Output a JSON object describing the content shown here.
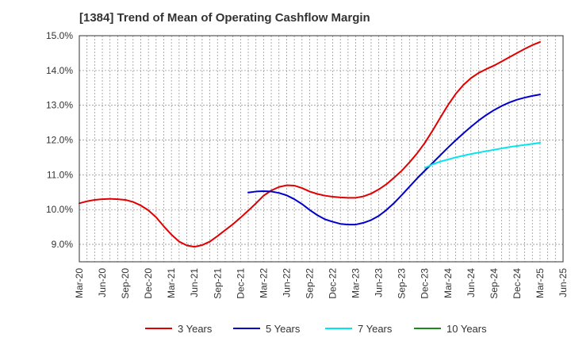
{
  "chart_data": {
    "type": "line",
    "title": "[1384]  Trend of Mean of Operating Cashflow Margin",
    "ylim": [
      8.5,
      15.0
    ],
    "yticks": [
      9.0,
      10.0,
      11.0,
      12.0,
      13.0,
      14.0,
      15.0
    ],
    "ytick_labels": [
      "9.0%",
      "10.0%",
      "11.0%",
      "12.0%",
      "13.0%",
      "14.0%",
      "15.0%"
    ],
    "xtick_labels": [
      "Mar-20",
      "Jun-20",
      "Sep-20",
      "Dec-20",
      "Mar-21",
      "Jun-21",
      "Sep-21",
      "Dec-21",
      "Mar-22",
      "Jun-22",
      "Sep-22",
      "Dec-22",
      "Mar-23",
      "Jun-23",
      "Sep-23",
      "Dec-23",
      "Mar-24",
      "Jun-24",
      "Sep-24",
      "Dec-24",
      "Mar-25",
      "Jun-25"
    ],
    "grid": true,
    "legend_position": "bottom",
    "series": [
      {
        "name": "3 Years",
        "color": "#e00000",
        "points": [
          [
            "Mar-20",
            10.18
          ],
          [
            "Apr-20",
            10.24
          ],
          [
            "May-20",
            10.28
          ],
          [
            "Jun-20",
            10.3
          ],
          [
            "Jul-20",
            10.31
          ],
          [
            "Aug-20",
            10.3
          ],
          [
            "Sep-20",
            10.28
          ],
          [
            "Oct-20",
            10.22
          ],
          [
            "Nov-20",
            10.12
          ],
          [
            "Dec-20",
            9.98
          ],
          [
            "Jan-21",
            9.78
          ],
          [
            "Feb-21",
            9.52
          ],
          [
            "Mar-21",
            9.28
          ],
          [
            "Apr-21",
            9.08
          ],
          [
            "May-21",
            8.97
          ],
          [
            "Jun-21",
            8.93
          ],
          [
            "Jul-21",
            8.98
          ],
          [
            "Aug-21",
            9.08
          ],
          [
            "Sep-21",
            9.24
          ],
          [
            "Oct-21",
            9.41
          ],
          [
            "Nov-21",
            9.58
          ],
          [
            "Dec-21",
            9.77
          ],
          [
            "Jan-22",
            9.97
          ],
          [
            "Feb-22",
            10.18
          ],
          [
            "Mar-22",
            10.4
          ],
          [
            "Apr-22",
            10.55
          ],
          [
            "May-22",
            10.65
          ],
          [
            "Jun-22",
            10.7
          ],
          [
            "Jul-22",
            10.69
          ],
          [
            "Aug-22",
            10.62
          ],
          [
            "Sep-22",
            10.52
          ],
          [
            "Oct-22",
            10.45
          ],
          [
            "Nov-22",
            10.4
          ],
          [
            "Dec-22",
            10.37
          ],
          [
            "Jan-23",
            10.35
          ],
          [
            "Feb-23",
            10.34
          ],
          [
            "Mar-23",
            10.34
          ],
          [
            "Apr-23",
            10.38
          ],
          [
            "May-23",
            10.46
          ],
          [
            "Jun-23",
            10.58
          ],
          [
            "Jul-23",
            10.73
          ],
          [
            "Aug-23",
            10.92
          ],
          [
            "Sep-23",
            11.12
          ],
          [
            "Oct-23",
            11.36
          ],
          [
            "Nov-23",
            11.62
          ],
          [
            "Dec-23",
            11.92
          ],
          [
            "Jan-24",
            12.27
          ],
          [
            "Feb-24",
            12.64
          ],
          [
            "Mar-24",
            13.0
          ],
          [
            "Apr-24",
            13.32
          ],
          [
            "May-24",
            13.58
          ],
          [
            "Jun-24",
            13.78
          ],
          [
            "Jul-24",
            13.93
          ],
          [
            "Aug-24",
            14.04
          ],
          [
            "Sep-24",
            14.14
          ],
          [
            "Oct-24",
            14.26
          ],
          [
            "Nov-24",
            14.38
          ],
          [
            "Dec-24",
            14.5
          ],
          [
            "Jan-25",
            14.62
          ],
          [
            "Feb-25",
            14.73
          ],
          [
            "Mar-25",
            14.82
          ]
        ]
      },
      {
        "name": "5 Years",
        "color": "#0000cc",
        "points": [
          [
            "Jan-22",
            10.49
          ],
          [
            "Feb-22",
            10.52
          ],
          [
            "Mar-22",
            10.53
          ],
          [
            "Apr-22",
            10.52
          ],
          [
            "May-22",
            10.48
          ],
          [
            "Jun-22",
            10.41
          ],
          [
            "Jul-22",
            10.3
          ],
          [
            "Aug-22",
            10.16
          ],
          [
            "Sep-22",
            9.99
          ],
          [
            "Oct-22",
            9.84
          ],
          [
            "Nov-22",
            9.72
          ],
          [
            "Dec-22",
            9.65
          ],
          [
            "Jan-23",
            9.59
          ],
          [
            "Feb-23",
            9.57
          ],
          [
            "Mar-23",
            9.57
          ],
          [
            "Apr-23",
            9.62
          ],
          [
            "May-23",
            9.7
          ],
          [
            "Jun-23",
            9.82
          ],
          [
            "Jul-23",
            9.99
          ],
          [
            "Aug-23",
            10.19
          ],
          [
            "Sep-23",
            10.42
          ],
          [
            "Oct-23",
            10.66
          ],
          [
            "Nov-23",
            10.9
          ],
          [
            "Dec-23",
            11.12
          ],
          [
            "Jan-24",
            11.34
          ],
          [
            "Feb-24",
            11.56
          ],
          [
            "Mar-24",
            11.78
          ],
          [
            "Apr-24",
            11.99
          ],
          [
            "May-24",
            12.19
          ],
          [
            "Jun-24",
            12.38
          ],
          [
            "Jul-24",
            12.56
          ],
          [
            "Aug-24",
            12.72
          ],
          [
            "Sep-24",
            12.86
          ],
          [
            "Oct-24",
            12.98
          ],
          [
            "Nov-24",
            13.08
          ],
          [
            "Dec-24",
            13.16
          ],
          [
            "Jan-25",
            13.22
          ],
          [
            "Feb-25",
            13.27
          ],
          [
            "Mar-25",
            13.31
          ]
        ]
      },
      {
        "name": "7 Years",
        "color": "#00e5ee",
        "points": [
          [
            "Dec-23",
            11.2
          ],
          [
            "Jan-24",
            11.3
          ],
          [
            "Feb-24",
            11.38
          ],
          [
            "Mar-24",
            11.44
          ],
          [
            "Apr-24",
            11.5
          ],
          [
            "May-24",
            11.55
          ],
          [
            "Jun-24",
            11.6
          ],
          [
            "Jul-24",
            11.64
          ],
          [
            "Aug-24",
            11.68
          ],
          [
            "Sep-24",
            11.72
          ],
          [
            "Oct-24",
            11.76
          ],
          [
            "Nov-24",
            11.8
          ],
          [
            "Dec-24",
            11.83
          ],
          [
            "Jan-25",
            11.86
          ],
          [
            "Feb-25",
            11.89
          ],
          [
            "Mar-25",
            11.92
          ]
        ]
      },
      {
        "name": "10 Years",
        "color": "#1a8a1a",
        "points": []
      }
    ]
  }
}
